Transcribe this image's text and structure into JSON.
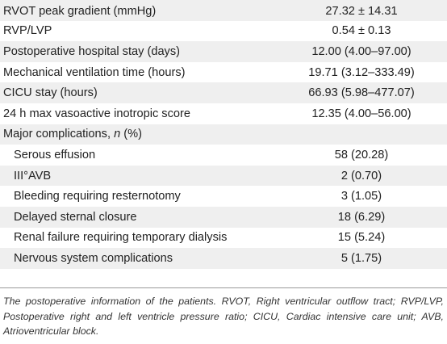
{
  "table": {
    "rows": [
      {
        "label": "RVOT peak gradient (mmHg)",
        "value": "27.32 ± 14.31",
        "sub": false
      },
      {
        "label": "RVP/LVP",
        "value": "0.54 ± 0.13",
        "sub": false
      },
      {
        "label": "Postoperative hospital stay (days)",
        "value": "12.00 (4.00–97.00)",
        "sub": false
      },
      {
        "label": "Mechanical ventilation time (hours)",
        "value": "19.71 (3.12–333.49)",
        "sub": false
      },
      {
        "label": "CICU stay (hours)",
        "value": "66.93 (5.98–477.07)",
        "sub": false
      },
      {
        "label": "24 h max vasoactive inotropic score",
        "value": "12.35 (4.00–56.00)",
        "sub": false
      },
      {
        "label_pre": "Major complications, ",
        "label_em": "n",
        "label_post": " (%)",
        "value": "",
        "sub": false
      },
      {
        "label": "Serous effusion",
        "value": "58 (20.28)",
        "sub": true
      },
      {
        "label": "III°AVB",
        "value": "2 (0.70)",
        "sub": true
      },
      {
        "label": "Bleeding requiring resternotomy",
        "value": "3 (1.05)",
        "sub": true
      },
      {
        "label": "Delayed sternal closure",
        "value": "18 (6.29)",
        "sub": true
      },
      {
        "label": "Renal failure requiring temporary dialysis",
        "value": "15 (5.24)",
        "sub": true
      },
      {
        "label": "Nervous system complications",
        "value": "5 (1.75)",
        "sub": true
      }
    ]
  },
  "caption": "The postoperative information of the patients. RVOT, Right ventricular outflow tract; RVP/LVP, Postoperative right and left ventricle pressure ratio; CICU, Cardiac intensive care unit; AVB, Atrioventricular block.",
  "colors": {
    "row_shade": "#efefef",
    "text": "#222222",
    "rule": "#9a9a9a"
  }
}
